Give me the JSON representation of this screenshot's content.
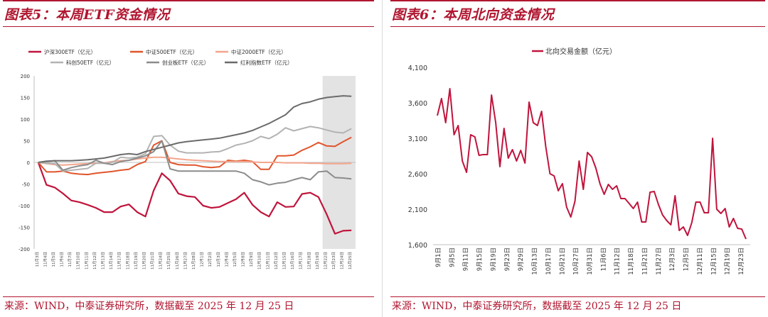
{
  "left": {
    "title": "图表5：本周ETF资金情况",
    "source": "来源：WIND，中泰证券研究所，数据截至 2025 年 12 月 25 日"
  },
  "right": {
    "title": "图表6：本周北向资金情况",
    "source": "来源：WIND，中泰证券研究所，数据截至 2025 年 12 月 25 日"
  },
  "chart_data": [
    {
      "type": "line",
      "title": "本周ETF资金情况",
      "ylim": [
        -200,
        200
      ],
      "yticks": [
        -200,
        -150,
        -100,
        -50,
        0,
        50,
        100,
        150,
        200
      ],
      "xlabels": [
        "11月3日",
        "11月4日",
        "11月5日",
        "11月6日",
        "11月7日",
        "11月10日",
        "11月11日",
        "11月12日",
        "11月13日",
        "11月14日",
        "11月17日",
        "11月18日",
        "11月19日",
        "11月20日",
        "11月21日",
        "11月24日",
        "11月25日",
        "11月26日",
        "11月27日",
        "11月28日",
        "12月1日",
        "12月2日",
        "12月3日",
        "12月4日",
        "12月5日",
        "12月8日",
        "12月9日",
        "12月10日",
        "12月11日",
        "12月12日",
        "12月15日",
        "12月16日",
        "12月17日",
        "12月18日",
        "12月19日",
        "12月22日",
        "12月23日",
        "12月24日",
        "12月25日"
      ],
      "highlight_from_index": 35,
      "legend_position": "top",
      "series": [
        {
          "name": "沪深300ETF（亿元）",
          "color": "#c0143c",
          "values": [
            0,
            -52,
            -58,
            -72,
            -88,
            -92,
            -98,
            -105,
            -115,
            -115,
            -102,
            -97,
            -115,
            -125,
            -65,
            -25,
            -42,
            -72,
            -78,
            -80,
            -100,
            -105,
            -103,
            -94,
            -85,
            -70,
            -98,
            -115,
            -125,
            -92,
            -103,
            -102,
            -73,
            -70,
            -80,
            -120,
            -165,
            -158,
            -157
          ]
        },
        {
          "name": "中证500ETF（亿元）",
          "color": "#e0552c",
          "values": [
            0,
            -22,
            -22,
            -20,
            -25,
            -27,
            -28,
            -25,
            -23,
            -21,
            -18,
            -16,
            -5,
            2,
            40,
            50,
            0,
            -5,
            -6,
            -6,
            -10,
            -12,
            -10,
            5,
            3,
            5,
            2,
            -16,
            -16,
            15,
            15,
            17,
            28,
            36,
            46,
            38,
            37,
            48,
            58
          ]
        },
        {
          "name": "中证2000ETF（亿元）",
          "color": "#f4a58c",
          "values": [
            0,
            -3,
            -5,
            -6,
            -5,
            -4,
            -3,
            -2,
            -1,
            2,
            4,
            5,
            8,
            10,
            12,
            12,
            10,
            8,
            6,
            5,
            4,
            3,
            2,
            2,
            2,
            2,
            1,
            0,
            0,
            0,
            -1,
            -1,
            -1,
            -2,
            -2,
            -3,
            -3,
            -3,
            -2
          ]
        },
        {
          "name": "科创50ETF（亿元）",
          "color": "#b3b3b3",
          "values": [
            0,
            -2,
            -3,
            -20,
            -18,
            -16,
            -14,
            -2,
            -2,
            0,
            12,
            10,
            12,
            20,
            60,
            62,
            40,
            26,
            22,
            22,
            22,
            24,
            25,
            32,
            40,
            44,
            50,
            60,
            55,
            65,
            80,
            73,
            78,
            83,
            80,
            75,
            70,
            68,
            78
          ]
        },
        {
          "name": "创业板ETF（亿元）",
          "color": "#8c8c8c",
          "values": [
            0,
            2,
            4,
            -18,
            -12,
            -8,
            -5,
            5,
            -2,
            -5,
            2,
            5,
            10,
            15,
            25,
            50,
            -15,
            -20,
            -20,
            -20,
            -20,
            -20,
            -20,
            -20,
            -20,
            -25,
            -40,
            -45,
            -52,
            -48,
            -46,
            -40,
            -35,
            -40,
            -22,
            -20,
            -35,
            -36,
            -38
          ]
        },
        {
          "name": "红利指数ETF（亿元）",
          "color": "#6b6b6b",
          "values": [
            0,
            3,
            4,
            4,
            4,
            5,
            6,
            8,
            10,
            14,
            18,
            20,
            18,
            25,
            30,
            35,
            40,
            45,
            48,
            50,
            52,
            54,
            56,
            60,
            64,
            68,
            74,
            82,
            90,
            100,
            110,
            128,
            136,
            140,
            146,
            150,
            152,
            154,
            153
          ]
        }
      ]
    },
    {
      "type": "line",
      "title": "本周北向资金情况",
      "legend_position": "top",
      "ylim": [
        1600,
        4100
      ],
      "yticks": [
        "1,600",
        "2,100",
        "2,600",
        "3,100",
        "3,600",
        "4,100"
      ],
      "ytick_values": [
        1600,
        2100,
        2600,
        3100,
        3600,
        4100
      ],
      "xlabels": [
        "9月1日",
        "9月5日",
        "9月11日",
        "9月15日",
        "9月19日",
        "9月23日",
        "9月29日",
        "10月13日",
        "10月17日",
        "10月21日",
        "10月27日",
        "10月31日",
        "11月6日",
        "11月12日",
        "11月18日",
        "11月21日",
        "11月27日",
        "12月3日",
        "12月5日",
        "12月11日",
        "12月15日",
        "12月19日",
        "12月23日"
      ],
      "series": [
        {
          "name": "北向交易金额（亿元）",
          "color": "#c0143c",
          "values": [
            3420,
            3660,
            3320,
            3800,
            3150,
            3280,
            2780,
            2620,
            3150,
            3120,
            2860,
            2870,
            2870,
            3710,
            3320,
            2700,
            3240,
            2820,
            2940,
            2780,
            2930,
            2750,
            3610,
            3320,
            3280,
            3480,
            2980,
            2600,
            2570,
            2360,
            2460,
            2130,
            1990,
            2210,
            2780,
            2380,
            2900,
            2840,
            2680,
            2460,
            2310,
            2450,
            2380,
            2430,
            2250,
            2250,
            2180,
            2110,
            2200,
            1920,
            1920,
            2340,
            2350,
            2170,
            2020,
            1940,
            1880,
            2290,
            1800,
            1850,
            1730,
            1910,
            2200,
            2200,
            2050,
            2050,
            3100,
            2100,
            2040,
            2110,
            1850,
            1970,
            1830,
            1820,
            1680
          ]
        }
      ]
    }
  ]
}
